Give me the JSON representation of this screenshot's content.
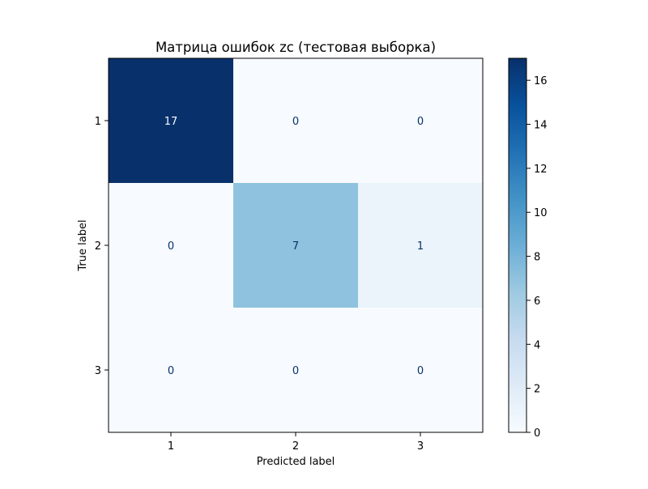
{
  "chart_data": {
    "type": "heatmap",
    "title": "Матрица ошибок zc (тестовая выборка)",
    "xlabel": "Predicted label",
    "ylabel": "True label",
    "x_categories": [
      "1",
      "2",
      "3"
    ],
    "y_categories": [
      "1",
      "2",
      "3"
    ],
    "matrix": [
      [
        17,
        0,
        0
      ],
      [
        0,
        7,
        1
      ],
      [
        0,
        0,
        0
      ]
    ],
    "colormap": "Blues",
    "color_range": [
      0,
      17
    ],
    "colorbar_ticks": [
      0,
      2,
      4,
      6,
      8,
      10,
      12,
      14,
      16
    ],
    "colorbar_tick_labels": [
      "0",
      "2",
      "4",
      "6",
      "8",
      "10",
      "12",
      "14",
      "16"
    ],
    "colors": {
      "low": "#f7fbff",
      "high": "#08306b",
      "text_light": "#f7fbff",
      "text_dark": "#08306b"
    }
  }
}
